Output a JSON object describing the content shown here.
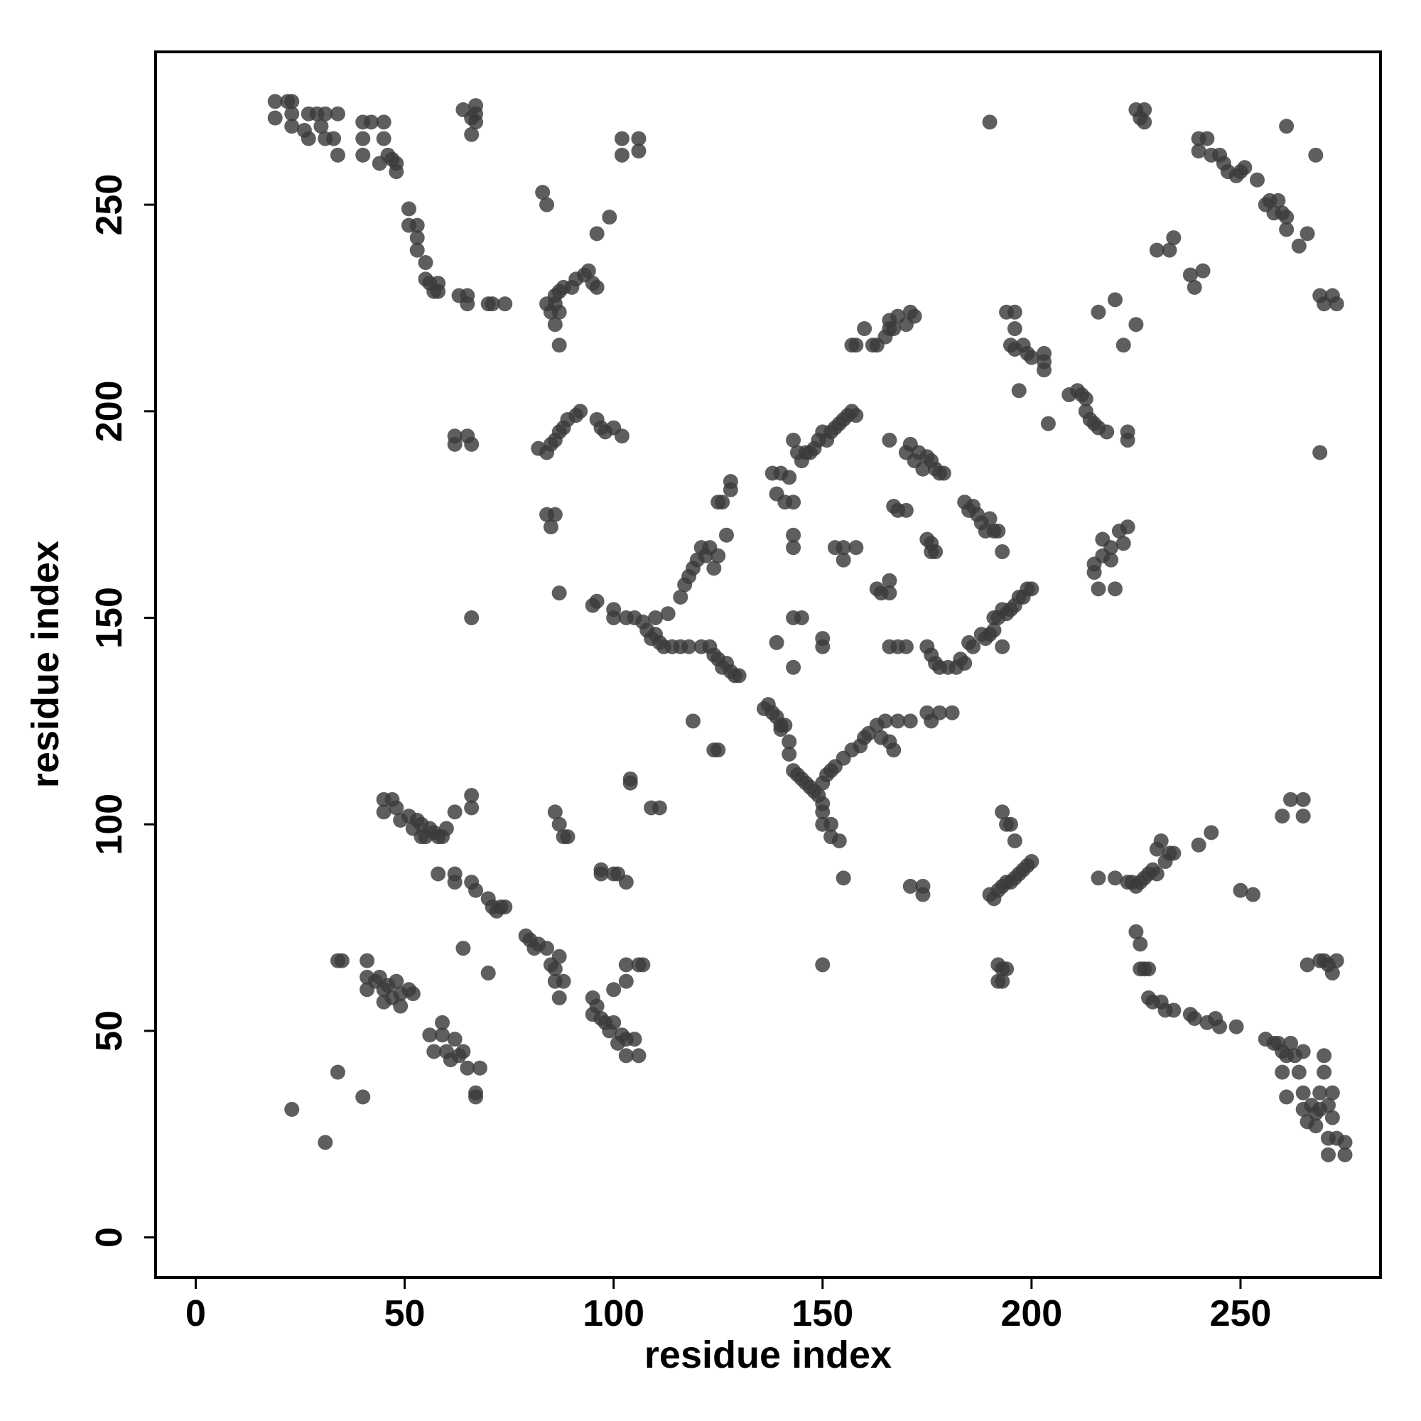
{
  "chart_data": {
    "type": "scatter",
    "x_label": "residue index",
    "y_label": "residue index",
    "xlim": [
      -9.6,
      283.5
    ],
    "ylim": [
      -9.7,
      287
    ],
    "xticks": [
      0,
      50,
      100,
      150,
      200,
      250
    ],
    "yticks": [
      0,
      50,
      100,
      150,
      200,
      250
    ],
    "series": [
      {
        "color": "#3a3a3a",
        "x": [
          19,
          19,
          22,
          23,
          23,
          23,
          26,
          27,
          27,
          29,
          30,
          31,
          31,
          33,
          34,
          34,
          40,
          40,
          40,
          42,
          44,
          45,
          45,
          46,
          47,
          48,
          48,
          51,
          51,
          53,
          53,
          53,
          55,
          55,
          56,
          57,
          58,
          58,
          63,
          65,
          65,
          70,
          71,
          74,
          64,
          66,
          67,
          67,
          66,
          67,
          102,
          106,
          102,
          106,
          83,
          84,
          84,
          85,
          86,
          86,
          87,
          87,
          88,
          86,
          87,
          90,
          91,
          93,
          94,
          95,
          96,
          96,
          99,
          62,
          62,
          65,
          66,
          82,
          84,
          85,
          86,
          87,
          88,
          89,
          91,
          92,
          96,
          97,
          100,
          102,
          98,
          84,
          85,
          86,
          87,
          66,
          95,
          96,
          100,
          100,
          103,
          105,
          107,
          108,
          109,
          110,
          110,
          111,
          112,
          113,
          114,
          116,
          117,
          118,
          119,
          120,
          121,
          122,
          123,
          124,
          125,
          125,
          126,
          127,
          128,
          128,
          116,
          118,
          121,
          123,
          124,
          125,
          126,
          127,
          128,
          129,
          130,
          136,
          137,
          138,
          139,
          140,
          140,
          141,
          142,
          142,
          143,
          144,
          145,
          146,
          147,
          148,
          149,
          150,
          150,
          150,
          152,
          152,
          154,
          155,
          150,
          151,
          152,
          153,
          155,
          157,
          159,
          160,
          161,
          163,
          164,
          165,
          166,
          167,
          168,
          171,
          175,
          176,
          178,
          181,
          119,
          124,
          125,
          139,
          143,
          143,
          145,
          150,
          150,
          138,
          139,
          140,
          141,
          142,
          143,
          143,
          144,
          145,
          146,
          147,
          148,
          149,
          150,
          151,
          152,
          153,
          154,
          155,
          156,
          157,
          158,
          143,
          143,
          153,
          155,
          155,
          158,
          157,
          158,
          160,
          162,
          163,
          165,
          166,
          166,
          167,
          168,
          170,
          171,
          172,
          166,
          167,
          168,
          170,
          170,
          171,
          172,
          173,
          174,
          175,
          176,
          177,
          178,
          179,
          184,
          185,
          186,
          187,
          188,
          189,
          190,
          191,
          192,
          193,
          175,
          176,
          176,
          177,
          163,
          164,
          166,
          166,
          166,
          168,
          170,
          175,
          176,
          177,
          178,
          180,
          182,
          183,
          184,
          185,
          186,
          188,
          189,
          190,
          191,
          191,
          192,
          193,
          194,
          195,
          196,
          197,
          198,
          199,
          200,
          193,
          190,
          194,
          196,
          196,
          195,
          196,
          198,
          199,
          200,
          203,
          203,
          203,
          197,
          204,
          209,
          211,
          212,
          213,
          213,
          214,
          215,
          216,
          218,
          216,
          220,
          223,
          223,
          222,
          225,
          225,
          227,
          226,
          227,
          230,
          233,
          234,
          238,
          239,
          241,
          240,
          240,
          242,
          243,
          245,
          246,
          247,
          249,
          250,
          251,
          254,
          256,
          257,
          258,
          259,
          260,
          261,
          261,
          261,
          264,
          266,
          268,
          269,
          270,
          272,
          273,
          269,
          215,
          215,
          216,
          217,
          217,
          219,
          219,
          220,
          221,
          222,
          223,
          45,
          47,
          45,
          48,
          49,
          51,
          52,
          53,
          54,
          54,
          55,
          57,
          58,
          59,
          56,
          60,
          62,
          66,
          66,
          58,
          62,
          62,
          66,
          67,
          70,
          71,
          72,
          73,
          74,
          79,
          80,
          81,
          82,
          84,
          85,
          86,
          86,
          87,
          87,
          88,
          86,
          87,
          88,
          89,
          95,
          95,
          96,
          97,
          98,
          99,
          100,
          101,
          102,
          103,
          100,
          103,
          103,
          106,
          107,
          105,
          106,
          103,
          97,
          97,
          100,
          101,
          103,
          104,
          104,
          109,
          111,
          34,
          35,
          41,
          41,
          41,
          43,
          44,
          45,
          45,
          46,
          47,
          48,
          49,
          49,
          51,
          52,
          56,
          57,
          59,
          59,
          60,
          61,
          62,
          63,
          64,
          65,
          68,
          64,
          70,
          67,
          67,
          23,
          31,
          34,
          40,
          150,
          171,
          174,
          174,
          190,
          191,
          192,
          193,
          194,
          195,
          196,
          197,
          198,
          199,
          200,
          193,
          194,
          195,
          196,
          192,
          193,
          194,
          193,
          192,
          216,
          220,
          223,
          224,
          225,
          226,
          227,
          228,
          229,
          230,
          230,
          231,
          232,
          233,
          234,
          240,
          243,
          250,
          253,
          225,
          226,
          226,
          227,
          228,
          228,
          229,
          231,
          232,
          234,
          238,
          239,
          242,
          244,
          245,
          249,
          256,
          258,
          259,
          260,
          261,
          262,
          263,
          264,
          265,
          265,
          265,
          266,
          267,
          268,
          268,
          269,
          269,
          270,
          270,
          271,
          271,
          271,
          272,
          272,
          273,
          275,
          275,
          261,
          260,
          260,
          262,
          265,
          265,
          266,
          269,
          270,
          271,
          272,
          273
        ],
        "y": [
          275,
          271,
          275,
          275,
          272,
          269,
          268,
          272,
          266,
          272,
          269,
          272,
          266,
          266,
          272,
          262,
          270,
          266,
          262,
          270,
          260,
          266,
          270,
          262,
          261,
          258,
          260,
          249,
          245,
          245,
          242,
          239,
          236,
          232,
          231,
          229,
          231,
          229,
          228,
          226,
          228,
          226,
          226,
          226,
          273,
          271,
          274,
          272,
          267,
          270,
          266,
          266,
          262,
          263,
          253,
          250,
          226,
          224,
          226,
          228,
          229,
          224,
          230,
          221,
          216,
          230,
          232,
          233,
          234,
          231,
          230,
          243,
          247,
          194,
          192,
          194,
          192,
          191,
          190,
          192,
          193,
          195,
          196,
          198,
          199,
          200,
          198,
          196,
          196,
          194,
          195,
          175,
          172,
          175,
          156,
          150,
          153,
          154,
          152,
          150,
          150,
          150,
          149,
          147,
          145,
          146,
          150,
          144,
          143,
          151,
          143,
          155,
          158,
          160,
          162,
          164,
          167,
          165,
          167,
          162,
          165,
          178,
          178,
          170,
          181,
          183,
          143,
          143,
          143,
          143,
          141,
          140,
          138,
          139,
          137,
          136,
          136,
          128,
          129,
          127,
          126,
          124,
          123,
          124,
          120,
          117,
          113,
          112,
          111,
          110,
          109,
          108,
          107,
          105,
          103,
          100,
          100,
          97,
          96,
          87,
          110,
          112,
          113,
          114,
          116,
          118,
          119,
          121,
          122,
          124,
          121,
          125,
          120,
          118,
          125,
          125,
          127,
          125,
          127,
          127,
          125,
          118,
          118,
          144,
          138,
          150,
          150,
          145,
          143,
          185,
          180,
          185,
          178,
          184,
          178,
          193,
          190,
          188,
          190,
          190,
          191,
          193,
          195,
          193,
          195,
          196,
          197,
          198,
          199,
          200,
          199,
          170,
          167,
          167,
          164,
          167,
          167,
          216,
          216,
          220,
          216,
          216,
          218,
          220,
          222,
          220,
          223,
          221,
          224,
          223,
          193,
          177,
          176,
          176,
          190,
          192,
          188,
          190,
          186,
          189,
          188,
          186,
          185,
          185,
          178,
          176,
          177,
          175,
          173,
          171,
          174,
          171,
          171,
          166,
          169,
          168,
          166,
          166,
          157,
          156,
          156,
          159,
          143,
          143,
          143,
          143,
          141,
          139,
          138,
          138,
          138,
          140,
          139,
          144,
          143,
          146,
          145,
          146,
          147,
          150,
          150,
          152,
          151,
          152,
          153,
          155,
          155,
          157,
          157,
          143,
          270,
          224,
          224,
          220,
          216,
          215,
          216,
          214,
          213,
          214,
          212,
          210,
          205,
          197,
          204,
          205,
          204,
          203,
          200,
          198,
          197,
          196,
          195,
          224,
          227,
          195,
          193,
          216,
          221,
          273,
          273,
          271,
          270,
          239,
          239,
          242,
          233,
          230,
          234,
          266,
          263,
          266,
          262,
          262,
          260,
          258,
          257,
          258,
          259,
          256,
          250,
          251,
          248,
          251,
          248,
          247,
          244,
          269,
          240,
          243,
          262,
          228,
          226,
          228,
          226,
          190,
          163,
          161,
          157,
          165,
          169,
          167,
          164,
          157,
          171,
          168,
          172,
          106,
          106,
          103,
          104,
          101,
          102,
          99,
          101,
          100,
          97,
          97,
          98,
          97,
          97,
          99,
          99,
          103,
          104,
          107,
          88,
          88,
          86,
          86,
          84,
          82,
          80,
          79,
          80,
          80,
          73,
          72,
          70,
          71,
          70,
          66,
          65,
          62,
          68,
          58,
          62,
          103,
          100,
          97,
          97,
          58,
          54,
          56,
          53,
          52,
          50,
          52,
          47,
          49,
          48,
          60,
          62,
          66,
          66,
          66,
          48,
          44,
          44,
          89,
          88,
          88,
          88,
          86,
          111,
          110,
          104,
          104,
          67,
          67,
          67,
          63,
          60,
          62,
          63,
          60,
          57,
          61,
          58,
          62,
          59,
          56,
          60,
          59,
          49,
          45,
          52,
          49,
          45,
          43,
          48,
          44,
          45,
          41,
          41,
          70,
          64,
          35,
          34,
          31,
          23,
          40,
          34,
          66,
          85,
          85,
          83,
          83,
          82,
          84,
          85,
          86,
          86,
          87,
          88,
          89,
          90,
          91,
          103,
          100,
          100,
          96,
          66,
          65,
          65,
          62,
          62,
          87,
          87,
          86,
          86,
          85,
          86,
          87,
          88,
          89,
          88,
          94,
          96,
          91,
          93,
          93,
          95,
          98,
          84,
          83,
          74,
          71,
          65,
          65,
          65,
          58,
          57,
          57,
          55,
          55,
          54,
          53,
          52,
          53,
          51,
          51,
          48,
          47,
          47,
          45,
          44,
          47,
          44,
          40,
          45,
          35,
          31,
          28,
          32,
          30,
          27,
          31,
          35,
          44,
          40,
          32,
          24,
          20,
          35,
          29,
          24,
          23,
          20,
          34,
          40,
          102,
          106,
          106,
          102,
          66,
          67,
          67,
          66,
          64,
          67
        ]
      }
    ]
  }
}
